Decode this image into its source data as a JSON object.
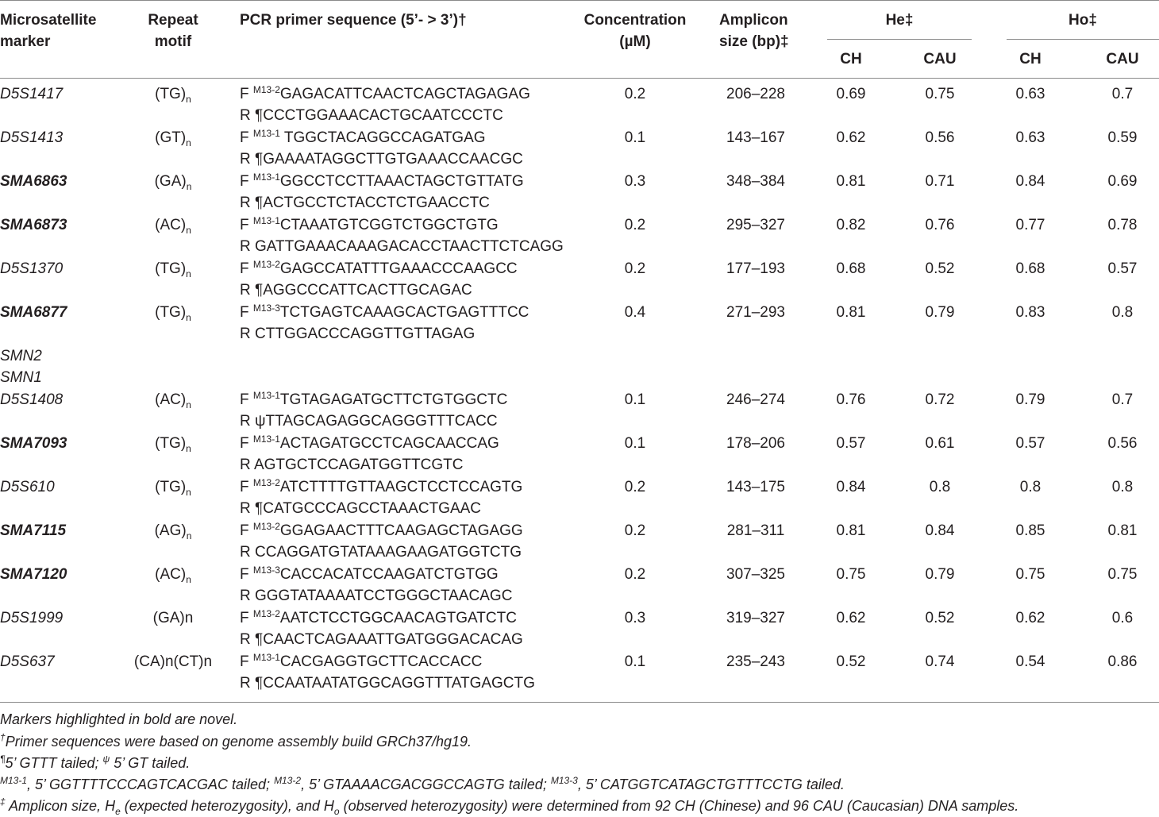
{
  "headers": {
    "marker": [
      "Microsatellite",
      "marker"
    ],
    "motif": [
      "Repeat",
      "motif"
    ],
    "primer": "PCR primer sequence (5’- > 3’)†",
    "conc": [
      "Concentration",
      "(µM)"
    ],
    "amplicon": [
      "Amplicon",
      "size (bp)‡"
    ],
    "he": "He‡",
    "ho": "Ho‡",
    "ch": "CH",
    "cau": "CAU"
  },
  "rows": [
    {
      "marker": "D5S1417",
      "bold": false,
      "motif": "(TG)",
      "motif_sub": "n",
      "f_tag": "M13-2",
      "f_seq": "GAGACATTCAACTCAGCTAGAGAG",
      "r_tag": "¶",
      "r_seq": "CCCTGGAAACACTGCAATCCCTC",
      "conc": "0.2",
      "amp": "206–228",
      "he_ch": "0.69",
      "he_cau": "0.75",
      "ho_ch": "0.63",
      "ho_cau": "0.7"
    },
    {
      "marker": "D5S1413",
      "bold": false,
      "motif": "(GT)",
      "motif_sub": "n",
      "f_tag": "M13-1",
      "f_seq": " TGGCTACAGGCCAGATGAG",
      "r_tag": "¶",
      "r_seq": "GAAAATAGGCTTGTGAAACCAACGC",
      "conc": "0.1",
      "amp": "143–167",
      "he_ch": "0.62",
      "he_cau": "0.56",
      "ho_ch": "0.63",
      "ho_cau": "0.59"
    },
    {
      "marker": "SMA6863",
      "bold": true,
      "motif": "(GA)",
      "motif_sub": "n",
      "f_tag": "M13-1",
      "f_seq": "GGCCTCCTTAAACTAGCTGTTATG",
      "r_tag": "¶",
      "r_seq": "ACTGCCTCTACCTCTGAACCTC",
      "conc": "0.3",
      "amp": "348–384",
      "he_ch": "0.81",
      "he_cau": "0.71",
      "ho_ch": "0.84",
      "ho_cau": "0.69"
    },
    {
      "marker": "SMA6873",
      "bold": true,
      "motif": "(AC)",
      "motif_sub": "n",
      "f_tag": "M13-1",
      "f_seq": "CTAAATGTCGGTCTGGCTGTG",
      "r_tag": "",
      "r_seq": "GATTGAAACAAAGACACCTAACTTCTCAGG",
      "conc": "0.2",
      "amp": "295–327",
      "he_ch": "0.82",
      "he_cau": "0.76",
      "ho_ch": "0.77",
      "ho_cau": "0.78"
    },
    {
      "marker": "D5S1370",
      "bold": false,
      "motif": "(TG)",
      "motif_sub": "n",
      "f_tag": "M13-2",
      "f_seq": "GAGCCATATTTGAAACCCAAGCC",
      "r_tag": "¶",
      "r_seq": "AGGCCCATTCACTTGCAGAC",
      "conc": "0.2",
      "amp": "177–193",
      "he_ch": "0.68",
      "he_cau": "0.52",
      "ho_ch": "0.68",
      "ho_cau": "0.57"
    },
    {
      "marker": "SMA6877",
      "bold": true,
      "motif": "(TG)",
      "motif_sub": "n",
      "f_tag": "M13-3",
      "f_seq": "TCTGAGTCAAAGCACTGAGTTTCC",
      "r_tag": "",
      "r_seq": "CTTGGACCCAGGTTGTTAGAG",
      "conc": "0.4",
      "amp": "271–293",
      "he_ch": "0.81",
      "he_cau": "0.79",
      "ho_ch": "0.83",
      "ho_cau": "0.8"
    },
    {
      "marker": "D5S1408",
      "bold": false,
      "motif": "(AC)",
      "motif_sub": "n",
      "f_tag": "M13-1",
      "f_seq": "TGTAGAGATGCTTCTGTGGCTC",
      "r_tag": "ψ",
      "r_seq": "TTAGCAGAGGCAGGGTTTCACC",
      "conc": "0.1",
      "amp": "246–274",
      "he_ch": "0.76",
      "he_cau": "0.72",
      "ho_ch": "0.79",
      "ho_cau": "0.7"
    },
    {
      "marker": "SMA7093",
      "bold": true,
      "motif": "(TG)",
      "motif_sub": "n",
      "f_tag": "M13-1",
      "f_seq": "ACTAGATGCCTCAGCAACCAG",
      "r_tag": "",
      "r_seq": "AGTGCTCCAGATGGTTCGTC",
      "conc": "0.1",
      "amp": "178–206",
      "he_ch": "0.57",
      "he_cau": "0.61",
      "ho_ch": "0.57",
      "ho_cau": "0.56"
    },
    {
      "marker": "D5S610",
      "bold": false,
      "motif": "(TG)",
      "motif_sub": "n",
      "f_tag": "M13-2",
      "f_seq": "ATCTTTTGTTAAGCTCCTCCAGTG",
      "r_tag": "¶",
      "r_seq": "CATGCCCAGCCTAAACTGAAC",
      "conc": "0.2",
      "amp": "143–175",
      "he_ch": "0.84",
      "he_cau": "0.8",
      "ho_ch": "0.8",
      "ho_cau": "0.8"
    },
    {
      "marker": "SMA7115",
      "bold": true,
      "motif": "(AG)",
      "motif_sub": "n",
      "f_tag": "M13-2",
      "f_seq": "GGAGAACTTTCAAGAGCTAGAGG",
      "r_tag": "",
      "r_seq": "CCAGGATGTATAAAGAAGATGGTCTG",
      "conc": "0.2",
      "amp": "281–311",
      "he_ch": "0.81",
      "he_cau": "0.84",
      "ho_ch": "0.85",
      "ho_cau": "0.81"
    },
    {
      "marker": "SMA7120",
      "bold": true,
      "motif": "(AC)",
      "motif_sub": "n",
      "f_tag": "M13-3",
      "f_seq": "CACCACATCCAAGATCTGTGG",
      "r_tag": "",
      "r_seq": "GGGTATAAAATCCTGGGCTAACAGC",
      "conc": "0.2",
      "amp": "307–325",
      "he_ch": "0.75",
      "he_cau": "0.79",
      "ho_ch": "0.75",
      "ho_cau": "0.75"
    },
    {
      "marker": "D5S1999",
      "bold": false,
      "motif": "(GA)n",
      "motif_sub": "",
      "f_tag": "M13-2",
      "f_seq": "AATCTCCTGGCAACAGTGATCTC",
      "r_tag": "¶",
      "r_seq": "CAACTCAGAAATTGATGGGACACAG",
      "conc": "0.3",
      "amp": "319–327",
      "he_ch": "0.62",
      "he_cau": "0.52",
      "ho_ch": "0.62",
      "ho_cau": "0.6"
    },
    {
      "marker": "D5S637",
      "bold": false,
      "motif": "(CA)n(CT)n",
      "motif_sub": "",
      "f_tag": "M13-1",
      "f_seq": "CACGAGGTGCTTCACCACC",
      "r_tag": "¶",
      "r_seq": "CCAATAATATGGCAGGTTTATGAGCTG",
      "conc": "0.1",
      "amp": "235–243",
      "he_ch": "0.52",
      "he_cau": "0.74",
      "ho_ch": "0.54",
      "ho_cau": "0.86"
    }
  ],
  "genes": [
    "SMN2",
    "SMN1"
  ],
  "footnotes": {
    "f1": "Markers highlighted in bold are novel.",
    "f2_mark": "†",
    "f2": "Primer sequences were based on genome assembly build GRCh37/hg19.",
    "f3_mark1": "¶",
    "f3_a": "5’ GTTT tailed; ",
    "f3_mark2": "ψ",
    "f3_b": " 5’ GT tailed.",
    "f4_m1": "M13-1",
    "f4_a": ", 5’ GGTTTTCCCAGTCACGAC tailed; ",
    "f4_m2": "M13-2",
    "f4_b": ", 5’ GTAAAACGACGGCCAGTG tailed; ",
    "f4_m3": "M13-3",
    "f4_c": ", 5’ CATGGTCATAGCTGTTTCCTG tailed.",
    "f5_mark": "‡",
    "f5_a": " Amplicon size, H",
    "f5_sub1": "e",
    "f5_b": " (expected heterozygosity), and H",
    "f5_sub2": "o",
    "f5_c": " (observed heterozygosity) were determined from 92 CH (Chinese) and 96 CAU (Caucasian) DNA samples."
  }
}
